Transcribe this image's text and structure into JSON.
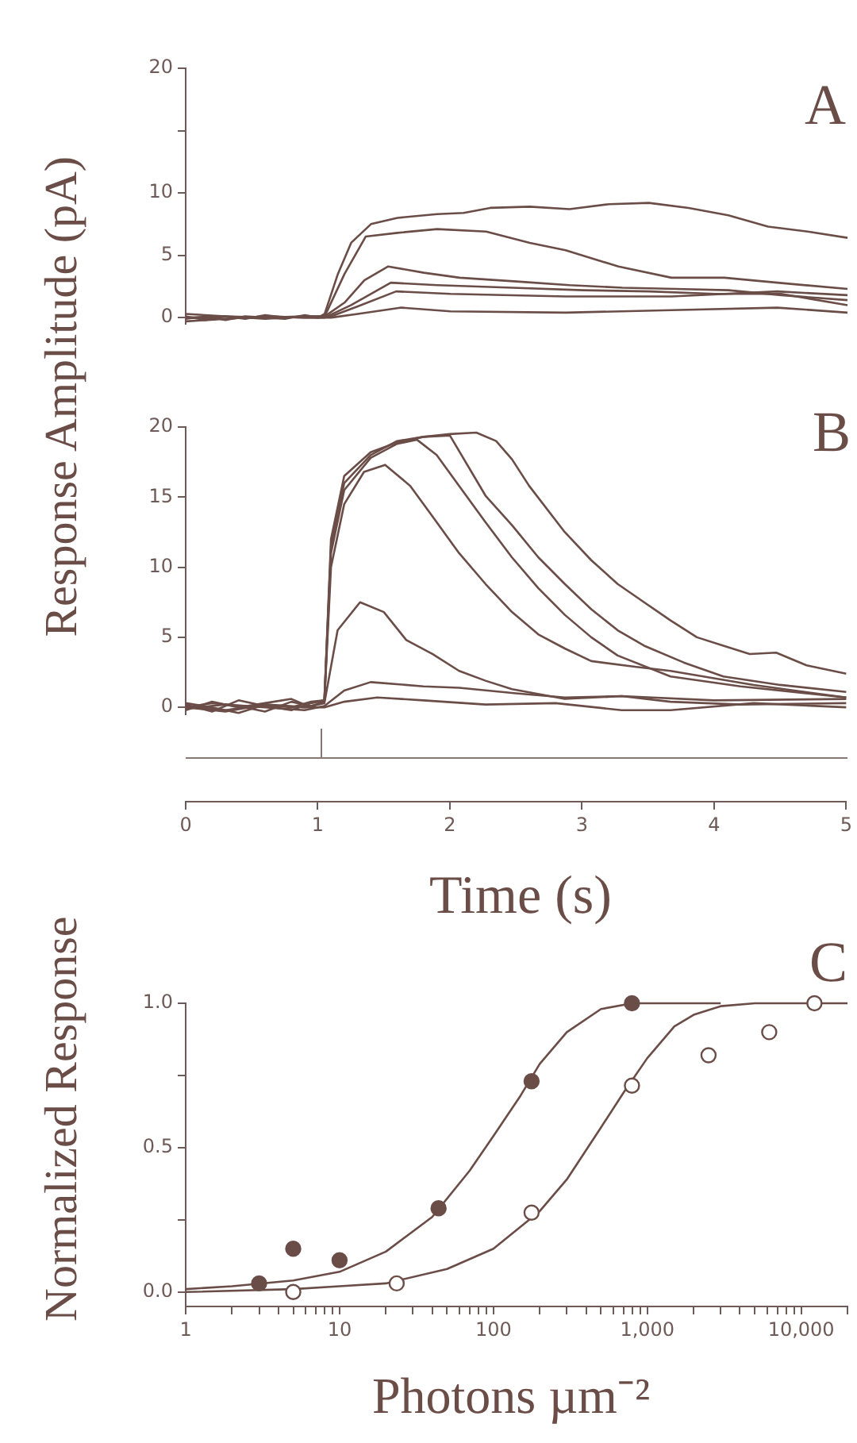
{
  "chart_data": [
    {
      "type": "line",
      "title": "A",
      "ylabel": "Response Amplitude (pA)",
      "xlim": [
        0,
        5
      ],
      "ylim": [
        -0.5,
        20
      ],
      "yticks": [
        0,
        5,
        10,
        {
          "value": 15,
          "label": null
        },
        20
      ],
      "tick_labels": "y",
      "marker": "none",
      "series": [
        {
          "color": "#6b4d48",
          "x": [
            0,
            0.15,
            0.3,
            0.45,
            0.6,
            0.75,
            0.9,
            1.0,
            1.05,
            1.15,
            1.25,
            1.4,
            1.6,
            1.9,
            2.1,
            2.3,
            2.6,
            2.9,
            3.2,
            3.5,
            3.8,
            4.1,
            4.4,
            4.7,
            5.0
          ],
          "values": [
            0.1,
            -0.2,
            0.1,
            -0.1,
            0.2,
            0,
            0.1,
            0,
            0.3,
            3.5,
            6.0,
            7.5,
            8.0,
            8.3,
            8.4,
            8.8,
            8.9,
            8.7,
            9.1,
            9.2,
            8.8,
            8.2,
            7.3,
            6.9,
            6.4
          ]
        },
        {
          "color": "#6b4d48",
          "x": [
            0,
            0.15,
            0.3,
            0.45,
            0.6,
            0.75,
            0.9,
            1.0,
            1.05,
            1.2,
            1.36,
            1.6,
            1.9,
            2.27,
            2.6,
            2.87,
            3.27,
            3.67,
            4.07,
            4.47,
            5.0
          ],
          "values": [
            -0.1,
            0.1,
            -0.2,
            0.1,
            0,
            -0.1,
            0.2,
            0,
            0.1,
            3.5,
            6.5,
            6.8,
            7.1,
            6.9,
            6.0,
            5.4,
            4.1,
            3.2,
            3.2,
            2.8,
            2.3
          ]
        },
        {
          "color": "#6b4d48",
          "x": [
            0,
            0.3,
            0.6,
            0.9,
            1.05,
            1.2,
            1.35,
            1.53,
            1.8,
            2.07,
            2.5,
            2.9,
            3.3,
            3.7,
            4.1,
            4.5,
            5.0
          ],
          "values": [
            0,
            0.1,
            -0.1,
            0.1,
            0.1,
            1.2,
            3.0,
            4.1,
            3.6,
            3.2,
            2.9,
            2.6,
            2.4,
            2.3,
            2.2,
            1.8,
            1.4
          ]
        },
        {
          "color": "#6b4d48",
          "x": [
            0,
            0.3,
            0.6,
            0.9,
            1.05,
            1.25,
            1.55,
            1.9,
            2.47,
            3.0,
            3.5,
            4.0,
            4.5,
            5.0
          ],
          "values": [
            -0.3,
            -0.1,
            0.1,
            0,
            0,
            1.0,
            2.8,
            2.6,
            2.4,
            2.2,
            2.1,
            1.9,
            1.9,
            1.0
          ]
        },
        {
          "color": "#6b4d48",
          "x": [
            0,
            0.3,
            0.6,
            0.9,
            1.1,
            1.3,
            1.59,
            2.0,
            2.87,
            3.67,
            4.47,
            5.0
          ],
          "values": [
            0.3,
            0.1,
            0,
            0.1,
            0.1,
            0.9,
            2.1,
            1.9,
            1.7,
            1.7,
            2.1,
            1.8
          ]
        },
        {
          "color": "#6b4d48",
          "x": [
            0,
            0.3,
            0.6,
            0.9,
            1.1,
            1.3,
            1.63,
            2.0,
            2.87,
            3.67,
            4.47,
            5.0
          ],
          "values": [
            0,
            -0.1,
            0.1,
            0,
            0,
            0.3,
            0.8,
            0.5,
            0.4,
            0.6,
            0.8,
            0.4
          ]
        }
      ]
    },
    {
      "type": "line",
      "title": "B",
      "xlabel": "Time (s)",
      "xlim": [
        0,
        5
      ],
      "xticks": [
        0,
        1,
        2,
        3,
        4,
        5
      ],
      "ylim": [
        -0.5,
        20
      ],
      "yticks": [
        0,
        5,
        10,
        15,
        20
      ],
      "marker": "none",
      "series": [
        {
          "color": "#6b4d48",
          "x": [
            0,
            0.2,
            0.4,
            0.6,
            0.8,
            0.95,
            1.05,
            1.1,
            1.2,
            1.4,
            1.6,
            1.8,
            2.0,
            2.2,
            2.35,
            2.47,
            2.6,
            2.87,
            3.07,
            3.27,
            3.47,
            3.67,
            3.87,
            4.07,
            4.27,
            4.47,
            4.7,
            5.0
          ],
          "values": [
            0.2,
            -0.3,
            0.5,
            0.1,
            -0.2,
            0.3,
            0.5,
            12,
            16.5,
            18.2,
            18.9,
            19.3,
            19.5,
            19.6,
            19.0,
            17.7,
            15.8,
            12.5,
            10.5,
            8.8,
            7.5,
            6.2,
            5.0,
            4.4,
            3.8,
            3.9,
            3.0,
            2.4
          ]
        },
        {
          "color": "#6b4d48",
          "x": [
            0,
            0.2,
            0.4,
            0.6,
            0.8,
            0.95,
            1.05,
            1.1,
            1.2,
            1.4,
            1.6,
            1.8,
            2.0,
            2.27,
            2.47,
            2.67,
            2.87,
            3.07,
            3.27,
            3.47,
            3.77,
            4.07,
            4.5,
            5.0
          ],
          "values": [
            -0.2,
            0.4,
            0,
            0.3,
            0.6,
            0,
            0.5,
            11.5,
            16,
            18,
            19,
            19.3,
            19.4,
            15.1,
            13,
            10.7,
            8.8,
            7.0,
            5.5,
            4.4,
            3.2,
            2.2,
            1.6,
            1.1
          ]
        },
        {
          "color": "#6b4d48",
          "x": [
            0,
            0.2,
            0.4,
            0.6,
            0.8,
            0.95,
            1.05,
            1.1,
            1.2,
            1.4,
            1.6,
            1.75,
            1.9,
            2.07,
            2.27,
            2.47,
            2.67,
            2.87,
            3.07,
            3.27,
            3.67,
            4.2,
            5.0
          ],
          "values": [
            0.3,
            0,
            -0.4,
            0.2,
            0,
            0.4,
            0.5,
            11,
            15.5,
            17.8,
            18.8,
            19.1,
            18,
            15.8,
            13.2,
            10.7,
            8.5,
            6.6,
            5.0,
            3.7,
            2.2,
            1.5,
            0.7
          ]
        },
        {
          "color": "#6b4d48",
          "x": [
            0,
            0.2,
            0.4,
            0.6,
            0.8,
            0.95,
            1.05,
            1.1,
            1.2,
            1.35,
            1.51,
            1.7,
            1.87,
            2.07,
            2.27,
            2.47,
            2.67,
            2.87,
            3.07,
            3.4,
            3.67,
            4.3,
            5.0
          ],
          "values": [
            0,
            0.3,
            0.1,
            -0.3,
            0.4,
            0.1,
            0.4,
            10,
            14.5,
            16.8,
            17.3,
            15.8,
            13.6,
            11.0,
            8.8,
            6.8,
            5.2,
            4.2,
            3.3,
            2.9,
            2.6,
            1.6,
            0.7
          ]
        },
        {
          "color": "#6b4d48",
          "x": [
            0,
            0.3,
            0.6,
            0.9,
            1.05,
            1.15,
            1.32,
            1.5,
            1.67,
            1.87,
            2.07,
            2.27,
            2.47,
            2.87,
            3.3,
            4.0,
            5.0
          ],
          "values": [
            0.1,
            -0.2,
            0.2,
            0,
            0.3,
            5.5,
            7.5,
            6.8,
            4.8,
            3.8,
            2.6,
            1.9,
            1.3,
            0.6,
            0.8,
            0.5,
            0.6
          ]
        },
        {
          "color": "#6b4d48",
          "x": [
            0,
            0.3,
            0.6,
            0.9,
            1.05,
            1.2,
            1.4,
            1.8,
            2.07,
            2.5,
            2.87,
            3.3,
            3.67,
            4.2,
            5.0
          ],
          "values": [
            -0.1,
            0.2,
            0,
            -0.2,
            0.1,
            1.2,
            1.8,
            1.5,
            1.4,
            1.0,
            0.7,
            0.8,
            0.4,
            0.2,
            0.3
          ]
        },
        {
          "color": "#6b4d48",
          "x": [
            0,
            0.3,
            0.6,
            0.9,
            1.05,
            1.2,
            1.45,
            1.8,
            2.27,
            2.8,
            3.3,
            3.67,
            4.3,
            5.0
          ],
          "values": [
            0,
            -0.3,
            0.2,
            0,
            0,
            0.4,
            0.7,
            0.5,
            0.2,
            0.3,
            -0.2,
            -0.2,
            0.3,
            0
          ]
        }
      ]
    },
    {
      "type": "scatter",
      "title": "C",
      "xlabel": "Photons µm⁻²",
      "ylabel": "Normalized Response",
      "log": "x",
      "xlim": [
        1,
        20000
      ],
      "xticks": [
        1,
        {
          "value": 2,
          "label": null
        },
        {
          "value": 3,
          "label": null
        },
        {
          "value": 4,
          "label": null
        },
        {
          "value": 5,
          "label": null
        },
        {
          "value": 6,
          "label": null
        },
        {
          "value": 7,
          "label": null
        },
        {
          "value": 8,
          "label": null
        },
        {
          "value": 9,
          "label": null
        },
        10,
        {
          "value": 20,
          "label": null
        },
        {
          "value": 30,
          "label": null
        },
        {
          "value": 40,
          "label": null
        },
        {
          "value": 50,
          "label": null
        },
        {
          "value": 60,
          "label": null
        },
        {
          "value": 70,
          "label": null
        },
        {
          "value": 80,
          "label": null
        },
        {
          "value": 90,
          "label": null
        },
        100,
        {
          "value": 200,
          "label": null
        },
        {
          "value": 300,
          "label": null
        },
        {
          "value": 400,
          "label": null
        },
        {
          "value": 500,
          "label": null
        },
        {
          "value": 600,
          "label": null
        },
        {
          "value": 700,
          "label": null
        },
        {
          "value": 800,
          "label": null
        },
        {
          "value": 900,
          "label": null
        },
        {
          "value": 1000,
          "label": "1,000"
        },
        {
          "value": 2000,
          "label": null
        },
        {
          "value": 3000,
          "label": null
        },
        {
          "value": 4000,
          "label": null
        },
        {
          "value": 5000,
          "label": null
        },
        {
          "value": 6000,
          "label": null
        },
        {
          "value": 7000,
          "label": null
        },
        {
          "value": 8000,
          "label": null
        },
        {
          "value": 9000,
          "label": null
        },
        {
          "value": 10000,
          "label": "10,000"
        },
        {
          "value": 20000,
          "label": null
        }
      ],
      "ylim": [
        -0.05,
        1
      ],
      "yticks": [
        {
          "value": 0,
          "label": "0.0"
        },
        {
          "value": 0.25,
          "label": null
        },
        {
          "value": 0.5,
          "label": "0.5"
        },
        {
          "value": 0.75,
          "label": null
        },
        {
          "value": 1,
          "label": "1.0"
        }
      ],
      "marker": "circle",
      "series": [
        {
          "color": "#6b4d48",
          "x": [
            3,
            5,
            10,
            44,
            177,
            795
          ],
          "values": [
            0.03,
            0.15,
            0.11,
            0.29,
            0.73,
            1.0
          ]
        },
        {
          "color": "#6b4d48",
          "x": [
            5,
            23.5,
            177,
            795,
            2500,
            6200,
            12200
          ],
          "values": [
            0.0,
            0.03,
            0.275,
            0.715,
            0.82,
            0.9,
            1.0
          ]
        },
        {
          "type": "line",
          "marker": "none",
          "color": "#6b4d48",
          "x": [
            1,
            2,
            5,
            10,
            20,
            40,
            70,
            100,
            150,
            200,
            300,
            500,
            800,
            3000
          ],
          "values": [
            0.01,
            0.02,
            0.04,
            0.07,
            0.14,
            0.26,
            0.42,
            0.54,
            0.68,
            0.79,
            0.9,
            0.98,
            1.0,
            1.0
          ]
        },
        {
          "type": "line",
          "marker": "none",
          "color": "#6b4d48",
          "x": [
            1,
            5,
            10,
            20,
            50,
            100,
            200,
            300,
            500,
            700,
            1000,
            1500,
            2000,
            3000,
            5000,
            20000
          ],
          "values": [
            0.0,
            0.01,
            0.02,
            0.03,
            0.08,
            0.15,
            0.28,
            0.39,
            0.57,
            0.69,
            0.81,
            0.92,
            0.96,
            0.99,
            1.0,
            1.0
          ]
        }
      ]
    }
  ]
}
